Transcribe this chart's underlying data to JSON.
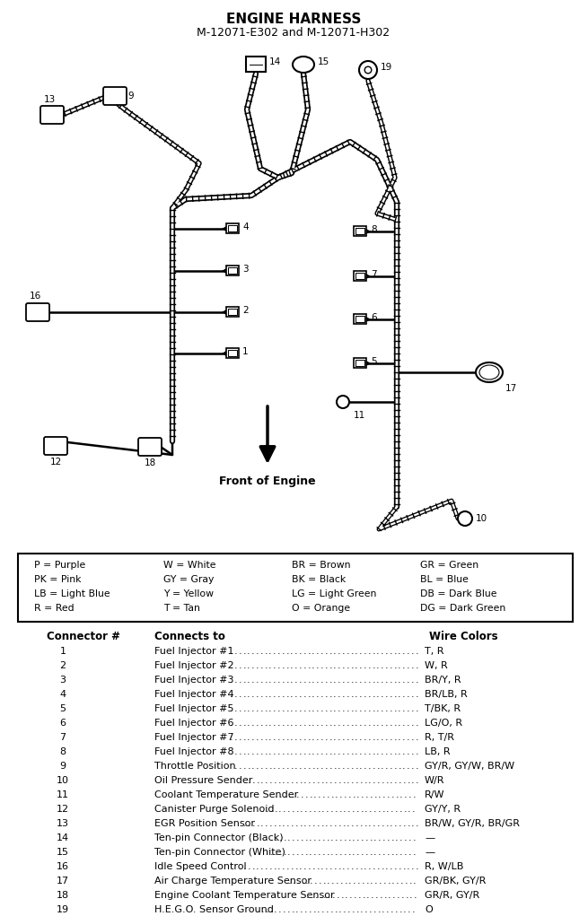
{
  "title": "ENGINE HARNESS",
  "subtitle": "M-12071-E302 and M-12071-H302",
  "legend_rows": [
    [
      "P = Purple",
      "W = White",
      "BR = Brown",
      "GR = Green"
    ],
    [
      "PK = Pink",
      "GY = Gray",
      "BK = Black",
      "BL = Blue"
    ],
    [
      "LB = Light Blue",
      "Y = Yellow",
      "LG = Light Green",
      "DB = Dark Blue"
    ],
    [
      "R = Red",
      "T = Tan",
      "O = Orange",
      "DG = Dark Green"
    ]
  ],
  "col_header": [
    "Connector #",
    "Connects to",
    "Wire Colors"
  ],
  "rows": [
    [
      "1",
      "Fuel Injector #1",
      "T, R"
    ],
    [
      "2",
      "Fuel Injector #2",
      "W, R"
    ],
    [
      "3",
      "Fuel Injector #3",
      "BR/Y, R"
    ],
    [
      "4",
      "Fuel Injector #4",
      "BR/LB, R"
    ],
    [
      "5",
      "Fuel Injector #5",
      "T/BK, R"
    ],
    [
      "6",
      "Fuel Injector #6",
      "LG/O, R"
    ],
    [
      "7",
      "Fuel Injector #7",
      "R, T/R"
    ],
    [
      "8",
      "Fuel Injector #8",
      "LB, R"
    ],
    [
      "9",
      "Throttle Position",
      "GY/R, GY/W, BR/W"
    ],
    [
      "10",
      "Oil Pressure Sender",
      "W/R"
    ],
    [
      "11",
      "Coolant Temperature Sender",
      "R/W"
    ],
    [
      "12",
      "Canister Purge Solenoid",
      "GY/Y, R"
    ],
    [
      "13",
      "EGR Position Sensor",
      "BR/W, GY/R, BR/GR"
    ],
    [
      "14",
      "Ten-pin Connector (Black)",
      "—"
    ],
    [
      "15",
      "Ten-pin Connector (White)",
      "—"
    ],
    [
      "16",
      "Idle Speed Control",
      "R, W/LB"
    ],
    [
      "17",
      "Air Charge Temperature Sensor",
      "GR/BK, GY/R"
    ],
    [
      "18",
      "Engine Coolant Temperature Sensor",
      "GR/R, GY/R"
    ],
    [
      "19",
      "H.E.G.O. Sensor Ground",
      "O"
    ]
  ],
  "front_label": "Front of Engine"
}
